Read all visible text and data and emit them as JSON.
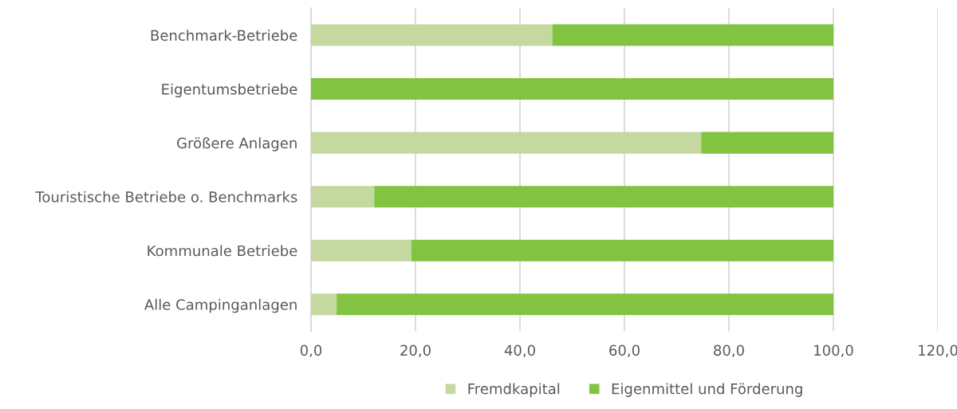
{
  "chart_data": {
    "type": "bar",
    "orientation": "horizontal",
    "stacked": true,
    "categories": [
      "Benchmark-Betriebe",
      "Eigentumsbetriebe",
      "Größere Anlagen",
      "Touristische Betriebe o. Benchmarks",
      "Kommunale Betriebe",
      "Alle Campinganlagen"
    ],
    "series": [
      {
        "name": "Fremdkapital",
        "color": "#c5d89f",
        "values": [
          46.2,
          0,
          74.7,
          12.1,
          19.2,
          4.9
        ]
      },
      {
        "name": "Eigenmittel und Förderung",
        "color": "#82c341",
        "values": [
          53.8,
          100,
          25.3,
          87.9,
          80.8,
          95.1
        ]
      }
    ],
    "xlim": [
      0,
      120
    ],
    "xticks": [
      {
        "value": 0,
        "label": "0,0"
      },
      {
        "value": 20,
        "label": "20,0"
      },
      {
        "value": 40,
        "label": "40,0"
      },
      {
        "value": 60,
        "label": "60,0"
      },
      {
        "value": 80,
        "label": "80,0"
      },
      {
        "value": 100,
        "label": "100,0"
      },
      {
        "value": 120,
        "label": "120,0"
      }
    ],
    "grid": "x",
    "legend": "bottom"
  }
}
